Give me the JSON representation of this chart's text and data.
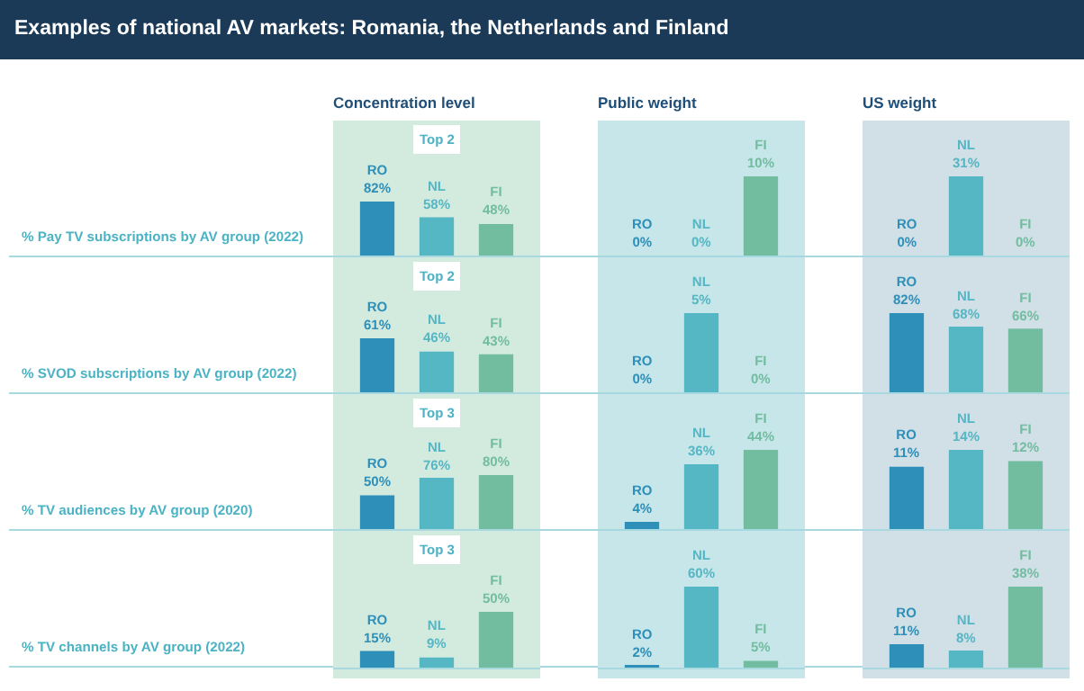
{
  "chart_data": [
    {
      "type": "other",
      "title": "Examples of national AV markets: Romania, the Netherlands and Finland"
    },
    {
      "type": "bar",
      "title": "Concentration level",
      "subtitle": "Top 2",
      "ylabel": "% Pay TV subscriptions by AV group (2022)",
      "categories": [
        "RO",
        "NL",
        "FI"
      ],
      "values": [
        82,
        58,
        48
      ],
      "value_labels": [
        "82%",
        "58%",
        "48%"
      ],
      "colors": [
        "#2e8fb9",
        "#55b6c4",
        "#72bda0"
      ],
      "tick_labels": false
    },
    {
      "type": "bar",
      "title": "Public weight",
      "categories": [
        "RO",
        "NL",
        "FI"
      ],
      "values": [
        0,
        0,
        10
      ],
      "value_labels": [
        "0%",
        "0%",
        "10%"
      ],
      "colors": [
        "#2e8fb9",
        "#55b6c4",
        "#72bda0"
      ],
      "tick_labels": false
    },
    {
      "type": "bar",
      "title": "US weight",
      "categories": [
        "RO",
        "NL",
        "FI"
      ],
      "values": [
        0,
        31,
        0
      ],
      "value_labels": [
        "0%",
        "31%",
        "0%"
      ],
      "colors": [
        "#2e8fb9",
        "#55b6c4",
        "#72bda0"
      ],
      "tick_labels": false
    },
    {
      "type": "bar",
      "subtitle": "Top 2",
      "ylabel": "% SVOD subscriptions by AV group (2022)",
      "categories": [
        "RO",
        "NL",
        "FI"
      ],
      "values": [
        61,
        46,
        43
      ],
      "value_labels": [
        "61%",
        "46%",
        "43%"
      ],
      "colors": [
        "#2e8fb9",
        "#55b6c4",
        "#72bda0"
      ],
      "tick_labels": false
    },
    {
      "type": "bar",
      "categories": [
        "RO",
        "NL",
        "FI"
      ],
      "values": [
        0,
        5,
        0
      ],
      "value_labels": [
        "0%",
        "5%",
        "0%"
      ],
      "colors": [
        "#2e8fb9",
        "#55b6c4",
        "#72bda0"
      ],
      "tick_labels": false
    },
    {
      "type": "bar",
      "categories": [
        "RO",
        "NL",
        "FI"
      ],
      "values": [
        82,
        68,
        66
      ],
      "value_labels": [
        "82%",
        "68%",
        "66%"
      ],
      "colors": [
        "#2e8fb9",
        "#55b6c4",
        "#72bda0"
      ],
      "tick_labels": false
    },
    {
      "type": "bar",
      "subtitle": "Top 3",
      "ylabel": "% TV audiences by AV group (2020)",
      "categories": [
        "RO",
        "NL",
        "FI"
      ],
      "values": [
        50,
        76,
        80
      ],
      "value_labels": [
        "50%",
        "76%",
        "80%"
      ],
      "colors": [
        "#2e8fb9",
        "#55b6c4",
        "#72bda0"
      ],
      "tick_labels": false
    },
    {
      "type": "bar",
      "categories": [
        "RO",
        "NL",
        "FI"
      ],
      "values": [
        4,
        36,
        44
      ],
      "value_labels": [
        "4%",
        "36%",
        "44%"
      ],
      "colors": [
        "#2e8fb9",
        "#55b6c4",
        "#72bda0"
      ],
      "tick_labels": false
    },
    {
      "type": "bar",
      "categories": [
        "RO",
        "NL",
        "FI"
      ],
      "values": [
        11,
        14,
        12
      ],
      "value_labels": [
        "11%",
        "14%",
        "12%"
      ],
      "colors": [
        "#2e8fb9",
        "#55b6c4",
        "#72bda0"
      ],
      "tick_labels": false
    },
    {
      "type": "bar",
      "subtitle": "Top 3",
      "ylabel": "% TV channels by AV group (2022)",
      "categories": [
        "RO",
        "NL",
        "FI"
      ],
      "values": [
        15,
        9,
        50
      ],
      "value_labels": [
        "15%",
        "9%",
        "50%"
      ],
      "colors": [
        "#2e8fb9",
        "#55b6c4",
        "#72bda0"
      ],
      "tick_labels": false
    },
    {
      "type": "bar",
      "categories": [
        "RO",
        "NL",
        "FI"
      ],
      "values": [
        2,
        60,
        5
      ],
      "value_labels": [
        "2%",
        "60%",
        "5%"
      ],
      "colors": [
        "#2e8fb9",
        "#55b6c4",
        "#72bda0"
      ],
      "tick_labels": false
    },
    {
      "type": "bar",
      "categories": [
        "RO",
        "NL",
        "FI"
      ],
      "values": [
        11,
        8,
        38
      ],
      "value_labels": [
        "11%",
        "8%",
        "38%"
      ],
      "colors": [
        "#2e8fb9",
        "#55b6c4",
        "#72bda0"
      ],
      "tick_labels": false
    }
  ]
}
